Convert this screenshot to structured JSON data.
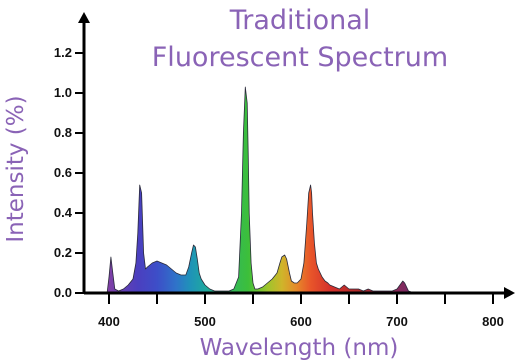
{
  "chart_data": {
    "type": "area",
    "title": [
      "Traditional",
      "Fluorescent Spectrum"
    ],
    "xlabel": "Wavelength (nm)",
    "ylabel": "Intensity (%)",
    "xlim": [
      350,
      810
    ],
    "ylim": [
      0,
      1.3
    ],
    "x_ticks": [
      400,
      500,
      600,
      700,
      800
    ],
    "x_tick_labels": [
      "400",
      "500",
      "600",
      "700",
      "800"
    ],
    "y_ticks": [
      0,
      0.2,
      0.4,
      0.6,
      0.8,
      1.0,
      1.2
    ],
    "y_tick_labels": [
      "0.0",
      "0.2",
      "0.4",
      "0.6",
      "0.8",
      "1.0",
      "1.2"
    ],
    "grid": false,
    "fill": "wavelength-colored spectrum",
    "series": [
      {
        "x": [
          398,
          400,
          402,
          404,
          406,
          410,
          415,
          420,
          425,
          428,
          430,
          432,
          434,
          436,
          438,
          440,
          445,
          450,
          455,
          460,
          465,
          470,
          475,
          480,
          483,
          486,
          488,
          490,
          492,
          494,
          496,
          500,
          505,
          510,
          515,
          520,
          525,
          530,
          535,
          538,
          540,
          542,
          544,
          545,
          546,
          548,
          550,
          552,
          555,
          560,
          565,
          570,
          575,
          578,
          580,
          583,
          585,
          588,
          590,
          593,
          596,
          600,
          603,
          606,
          608,
          610,
          611,
          612,
          614,
          616,
          618,
          620,
          622,
          625,
          628,
          630,
          635,
          640,
          645,
          650,
          655,
          660,
          665,
          670,
          675,
          680,
          685,
          690,
          695,
          700,
          703,
          706,
          708,
          710,
          712,
          715,
          720
        ],
        "values": [
          0,
          0.08,
          0.18,
          0.1,
          0.02,
          0.01,
          0.02,
          0.04,
          0.07,
          0.15,
          0.3,
          0.54,
          0.5,
          0.2,
          0.12,
          0.13,
          0.15,
          0.16,
          0.15,
          0.14,
          0.12,
          0.1,
          0.09,
          0.09,
          0.13,
          0.2,
          0.24,
          0.23,
          0.17,
          0.1,
          0.07,
          0.04,
          0.02,
          0.01,
          0.01,
          0.01,
          0.01,
          0.02,
          0.08,
          0.4,
          0.8,
          1.03,
          0.95,
          0.7,
          0.4,
          0.15,
          0.05,
          0.02,
          0.02,
          0.03,
          0.05,
          0.07,
          0.1,
          0.15,
          0.18,
          0.19,
          0.17,
          0.1,
          0.06,
          0.05,
          0.05,
          0.07,
          0.15,
          0.35,
          0.5,
          0.54,
          0.5,
          0.4,
          0.25,
          0.15,
          0.12,
          0.1,
          0.08,
          0.06,
          0.05,
          0.04,
          0.03,
          0.02,
          0.04,
          0.02,
          0.02,
          0.02,
          0.01,
          0.02,
          0.01,
          0.01,
          0.01,
          0.01,
          0.01,
          0.02,
          0.04,
          0.06,
          0.05,
          0.03,
          0.01,
          0.005,
          0
        ]
      }
    ]
  }
}
